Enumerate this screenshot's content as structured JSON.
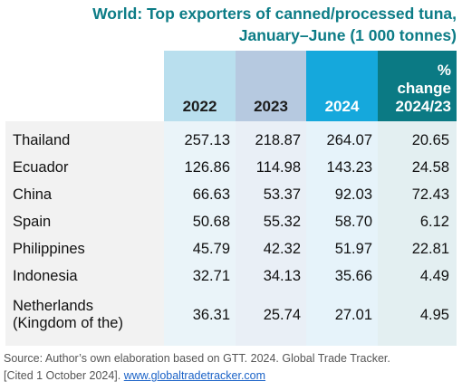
{
  "title_line1": "World: Top exporters of canned/processed tuna,",
  "title_line2": "January–June (1 000 tonnes)",
  "table": {
    "headers": {
      "y2022": "2022",
      "y2023": "2023",
      "y2024": "2024",
      "pct_line1": "%",
      "pct_line2": "change",
      "pct_line3": "2024/23"
    },
    "rows": [
      {
        "country": "Thailand",
        "y2022": "257.13",
        "y2023": "218.87",
        "y2024": "264.07",
        "pct": "20.65"
      },
      {
        "country": "Ecuador",
        "y2022": "126.86",
        "y2023": "114.98",
        "y2024": "143.23",
        "pct": "24.58"
      },
      {
        "country": "China",
        "y2022": "66.63",
        "y2023": "53.37",
        "y2024": "92.03",
        "pct": "72.43"
      },
      {
        "country": "Spain",
        "y2022": "50.68",
        "y2023": "55.32",
        "y2024": "58.70",
        "pct": "6.12"
      },
      {
        "country": "Philippines",
        "y2022": "45.79",
        "y2023": "42.32",
        "y2024": "51.97",
        "pct": "22.81"
      },
      {
        "country": "Indonesia",
        "y2022": "32.71",
        "y2023": "34.13",
        "y2024": "35.66",
        "pct": "4.49"
      },
      {
        "country_line1": "Netherlands",
        "country_line2": "(Kingdom of the)",
        "y2022": "36.31",
        "y2023": "25.74",
        "y2024": "27.01",
        "pct": "4.95"
      }
    ]
  },
  "source": {
    "text_line1": "Source: Author’s own elaboration based on GTT. 2024. Global Trade Tracker.",
    "text_line2": "[Cited 1 October 2024].",
    "link": "www.globaltradetracker.com"
  },
  "colors": {
    "title": "#0c7c86",
    "header_2022": "#b9dfee",
    "header_2023": "#b6c9e0",
    "header_2024": "#15a8dc",
    "header_pct": "#0b7a84",
    "link": "#1a62c7"
  }
}
